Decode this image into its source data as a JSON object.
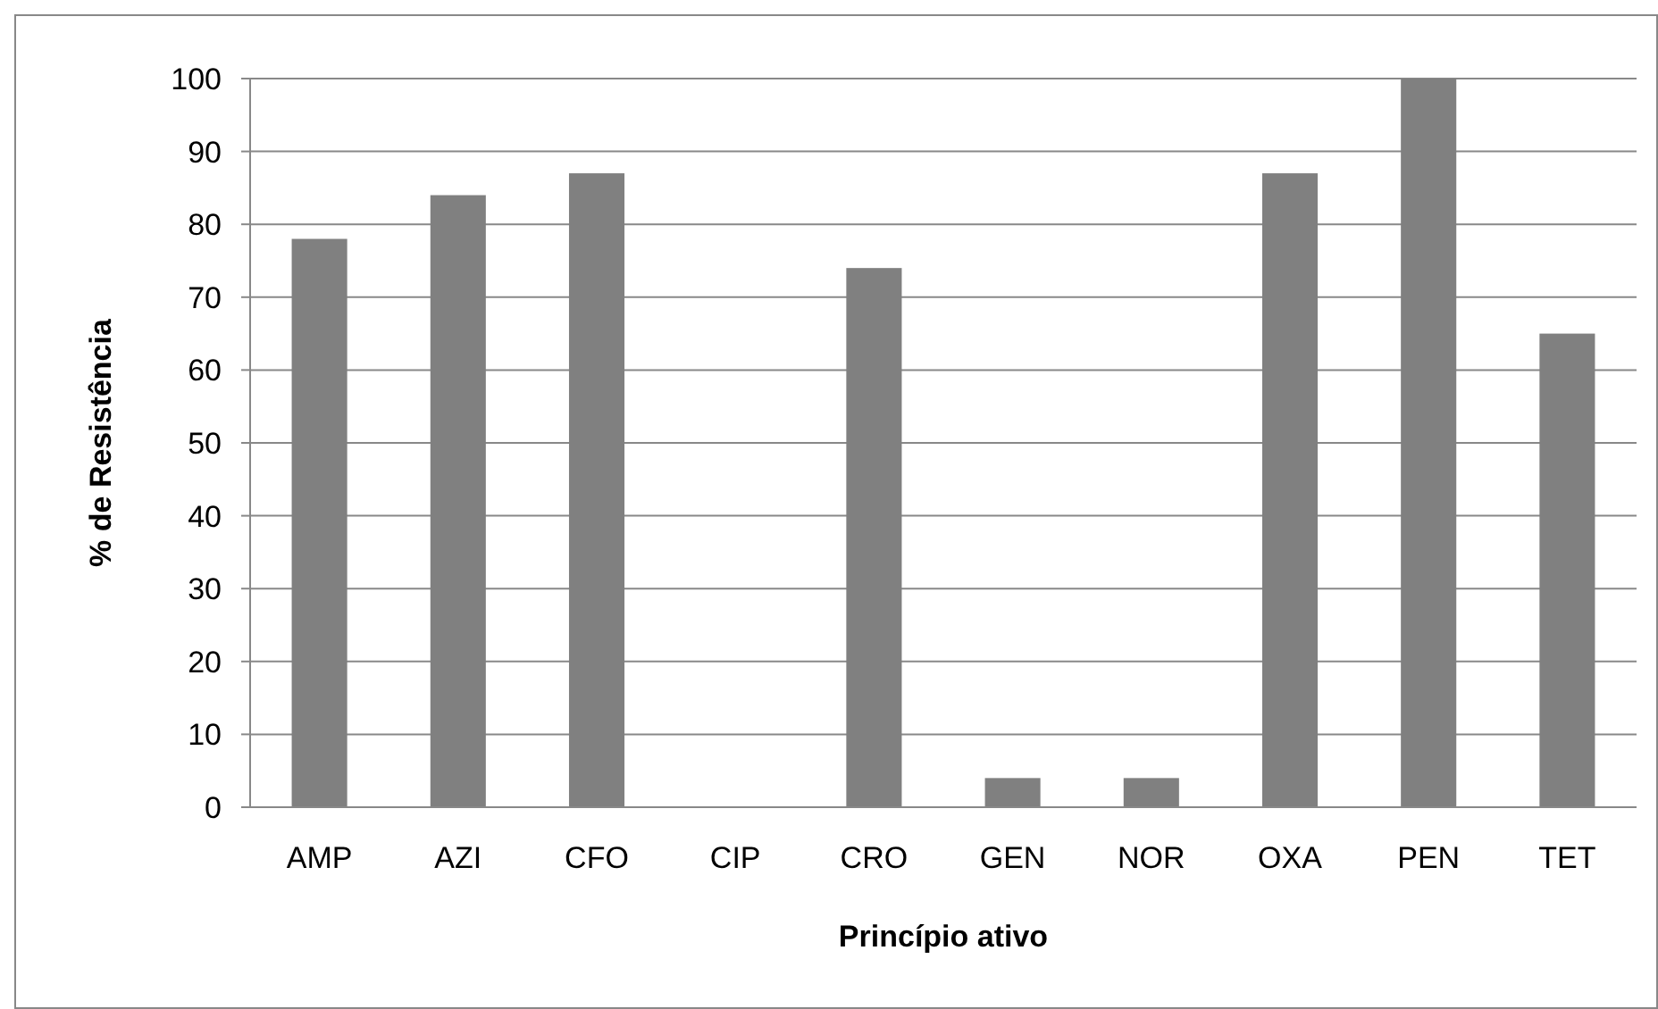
{
  "chart_data": {
    "type": "bar",
    "xlabel": "Princípio ativo",
    "ylabel": "% de Resistência",
    "categories": [
      "AMP",
      "AZI",
      "CFO",
      "CIP",
      "CRO",
      "GEN",
      "NOR",
      "OXA",
      "PEN",
      "TET"
    ],
    "values": [
      78,
      84,
      87,
      0,
      74,
      4,
      4,
      87,
      100,
      65
    ],
    "color": "#808080",
    "ylim": [
      0,
      100
    ],
    "yticks": [
      0,
      10,
      20,
      30,
      40,
      50,
      60,
      70,
      80,
      90,
      100
    ],
    "grid": "y"
  }
}
